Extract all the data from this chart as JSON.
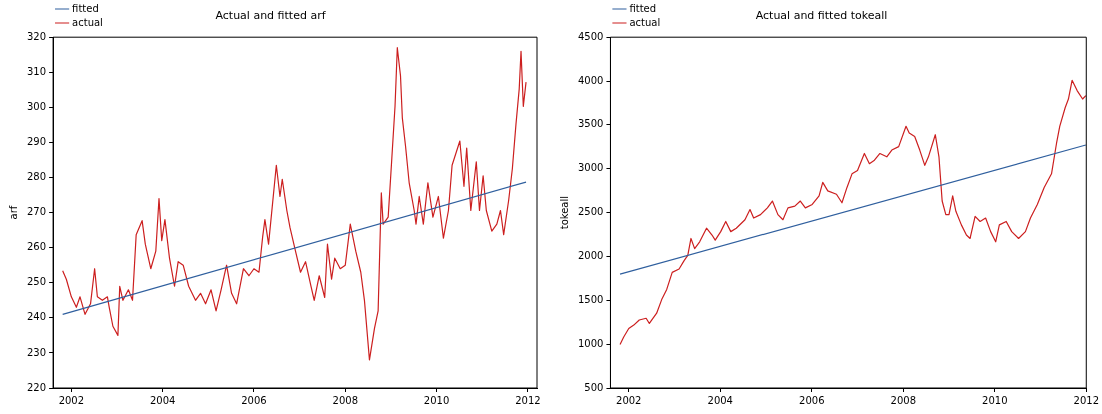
{
  "chart_data": [
    {
      "type": "line",
      "title": "Actual and fitted arf",
      "ylabel": "arf",
      "xlim": [
        2001.6,
        2012.2
      ],
      "xticks": [
        2002,
        2004,
        2006,
        2008,
        2010,
        2012
      ],
      "ylim": [
        220,
        320
      ],
      "yticks": [
        220,
        230,
        240,
        250,
        260,
        270,
        280,
        290,
        300,
        310,
        320
      ],
      "legend": "top left",
      "grid": false,
      "series": [
        {
          "name": "fitted",
          "color": "#2f5f9e",
          "x": [
            2001.81,
            2011.96
          ],
          "values": [
            241,
            278.7
          ]
        },
        {
          "name": "actual",
          "color": "#cc1f1f",
          "x": [
            2001.81,
            2001.89,
            2002.0,
            2002.11,
            2002.19,
            2002.3,
            2002.42,
            2002.51,
            2002.57,
            2002.68,
            2002.79,
            2002.83,
            2002.91,
            2003.02,
            2003.06,
            2003.13,
            2003.25,
            2003.34,
            2003.42,
            2003.55,
            2003.62,
            2003.74,
            2003.85,
            2003.92,
            2003.98,
            2004.05,
            2004.15,
            2004.26,
            2004.34,
            2004.45,
            2004.57,
            2004.72,
            2004.83,
            2004.94,
            2005.06,
            2005.17,
            2005.28,
            2005.4,
            2005.51,
            2005.62,
            2005.77,
            2005.89,
            2006.0,
            2006.11,
            2006.19,
            2006.24,
            2006.32,
            2006.49,
            2006.57,
            2006.62,
            2006.72,
            2006.79,
            2006.91,
            2007.02,
            2007.13,
            2007.25,
            2007.32,
            2007.43,
            2007.55,
            2007.61,
            2007.7,
            2007.77,
            2007.89,
            2008.0,
            2008.11,
            2008.23,
            2008.34,
            2008.42,
            2008.53,
            2008.64,
            2008.72,
            2008.79,
            2008.83,
            2008.94,
            2009.02,
            2009.09,
            2009.14,
            2009.21,
            2009.25,
            2009.32,
            2009.4,
            2009.51,
            2009.55,
            2009.62,
            2009.71,
            2009.81,
            2009.92,
            2010.04,
            2010.15,
            2010.26,
            2010.34,
            2010.51,
            2010.6,
            2010.66,
            2010.75,
            2010.87,
            2010.94,
            2011.02,
            2011.09,
            2011.21,
            2011.32,
            2011.4,
            2011.47,
            2011.58,
            2011.66,
            2011.74,
            2011.81,
            2011.85,
            2011.9,
            2011.96
          ],
          "values": [
            253.4,
            251,
            246,
            243,
            246,
            241,
            244,
            254,
            246,
            245,
            246,
            243,
            237.6,
            235,
            249,
            245,
            248,
            245,
            263.7,
            267.7,
            261,
            254,
            259,
            274,
            262,
            268,
            257,
            249,
            256,
            255,
            249,
            245,
            247,
            244,
            248,
            242,
            248,
            255,
            247,
            244,
            254,
            252,
            254,
            253,
            263,
            268,
            261,
            283.5,
            274.6,
            279.5,
            270.6,
            265.7,
            259,
            253,
            256,
            249,
            245,
            252,
            245.8,
            261,
            251,
            257,
            254,
            255,
            266.7,
            259,
            253,
            245,
            228,
            237,
            242,
            275.6,
            266.7,
            268.7,
            285.5,
            300.3,
            317,
            309,
            297,
            289,
            278.5,
            270.6,
            266.7,
            274.6,
            266.7,
            278.5,
            268.7,
            274.6,
            262.7,
            270.6,
            283.5,
            290.4,
            277.5,
            288.4,
            270.6,
            284.5,
            270.6,
            280.5,
            270.6,
            264.7,
            266.7,
            270.6,
            263.7,
            273.6,
            282.5,
            295.3,
            305.2,
            316,
            300.3,
            307.2
          ]
        }
      ]
    },
    {
      "type": "line",
      "title": "Actual and fitted tokeall",
      "ylabel": "tokeall",
      "xlim": [
        2001.6,
        2012.0
      ],
      "xticks": [
        2002,
        2004,
        2006,
        2008,
        2010,
        2012
      ],
      "ylim": [
        500,
        4500
      ],
      "yticks": [
        500,
        1000,
        1500,
        2000,
        2500,
        3000,
        3500,
        4000,
        4500
      ],
      "legend": "top left",
      "grid": false,
      "series": [
        {
          "name": "fitted",
          "color": "#2f5f9e",
          "x": [
            2001.81,
            2011.99
          ],
          "values": [
            1798,
            3271
          ]
        },
        {
          "name": "actual",
          "color": "#cc1f1f",
          "x": [
            2001.81,
            2001.89,
            2002.0,
            2002.11,
            2002.23,
            2002.38,
            2002.45,
            2002.61,
            2002.72,
            2002.83,
            2002.95,
            2003.1,
            2003.21,
            2003.29,
            2003.36,
            2003.44,
            2003.55,
            2003.7,
            2003.82,
            2003.89,
            2004.01,
            2004.12,
            2004.23,
            2004.35,
            2004.54,
            2004.65,
            2004.73,
            2004.88,
            2005.03,
            2005.14,
            2005.26,
            2005.37,
            2005.48,
            2005.63,
            2005.75,
            2005.86,
            2006.01,
            2006.16,
            2006.24,
            2006.35,
            2006.54,
            2006.66,
            2006.77,
            2006.88,
            2007.0,
            2007.15,
            2007.26,
            2007.37,
            2007.49,
            2007.64,
            2007.75,
            2007.9,
            2008.06,
            2008.13,
            2008.25,
            2008.36,
            2008.47,
            2008.55,
            2008.7,
            2008.78,
            2008.85,
            2008.93,
            2009.0,
            2009.08,
            2009.15,
            2009.27,
            2009.38,
            2009.46,
            2009.57,
            2009.68,
            2009.8,
            2009.91,
            2010.02,
            2010.1,
            2010.25,
            2010.37,
            2010.52,
            2010.67,
            2010.78,
            2010.93,
            2011.08,
            2011.24,
            2011.35,
            2011.42,
            2011.54,
            2011.61,
            2011.69,
            2011.8,
            2011.92,
            2011.99
          ],
          "values": [
            996,
            1081,
            1178,
            1217,
            1275,
            1295,
            1236,
            1353,
            1508,
            1624,
            1818,
            1857,
            1953,
            2012,
            2205,
            2089,
            2167,
            2322,
            2244,
            2186,
            2283,
            2399,
            2283,
            2322,
            2419,
            2535,
            2438,
            2477,
            2554,
            2632,
            2477,
            2419,
            2554,
            2574,
            2632,
            2554,
            2593,
            2690,
            2845,
            2748,
            2709,
            2612,
            2787,
            2942,
            2981,
            3174,
            3058,
            3097,
            3174,
            3136,
            3213,
            3252,
            3484,
            3407,
            3368,
            3213,
            3039,
            3136,
            3388,
            3136,
            2632,
            2477,
            2477,
            2690,
            2515,
            2360,
            2244,
            2205,
            2457,
            2399,
            2438,
            2283,
            2167,
            2360,
            2399,
            2283,
            2205,
            2283,
            2438,
            2593,
            2787,
            2942,
            3291,
            3484,
            3698,
            3795,
            4008,
            3891,
            3795,
            3833
          ]
        }
      ]
    }
  ]
}
